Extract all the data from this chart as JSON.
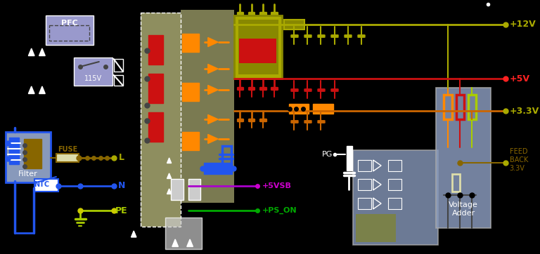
{
  "bg": "#000000",
  "fw": 7.68,
  "fh": 3.62,
  "dpi": 100,
  "colors": {
    "blue": "#2255ee",
    "dark_blue": "#0000bb",
    "orange": "#ff8800",
    "dark_orange": "#cc6600",
    "red": "#cc1111",
    "bright_red": "#ff2222",
    "yellow": "#cccc00",
    "olive": "#888800",
    "olive_bright": "#aaaa00",
    "white": "#ffffff",
    "light_gray": "#aaaaaa",
    "gray": "#888888",
    "dark_gray": "#444444",
    "lgray": "#cccccc",
    "lbgr": "#9999cc",
    "bgtan": "#cccc88",
    "bgblue": "#8899bb",
    "purple": "#aa00cc",
    "green": "#00aa00",
    "brown": "#886600",
    "tan": "#ccbb88",
    "ltan": "#ddddaa",
    "ygrn": "#aacc00",
    "toroid": "#886600",
    "magenta": "#cc00cc"
  },
  "labels": {
    "pfc": "PFC",
    "v115": "115V",
    "filter": "Filter",
    "fuse": "FUSE",
    "ntc": "NTC",
    "L": "L",
    "N": "N",
    "PE": "PE",
    "plus12v": "+12V",
    "plus5v": "+5V",
    "plus33v": "+3.3V",
    "plus5vsb": "+5VSB",
    "ps_on": "+PS_ON",
    "pg": "PG",
    "feedback": "FEED\nBACK\n3.3V",
    "voltage_adder": "Voltage\nAdder"
  }
}
